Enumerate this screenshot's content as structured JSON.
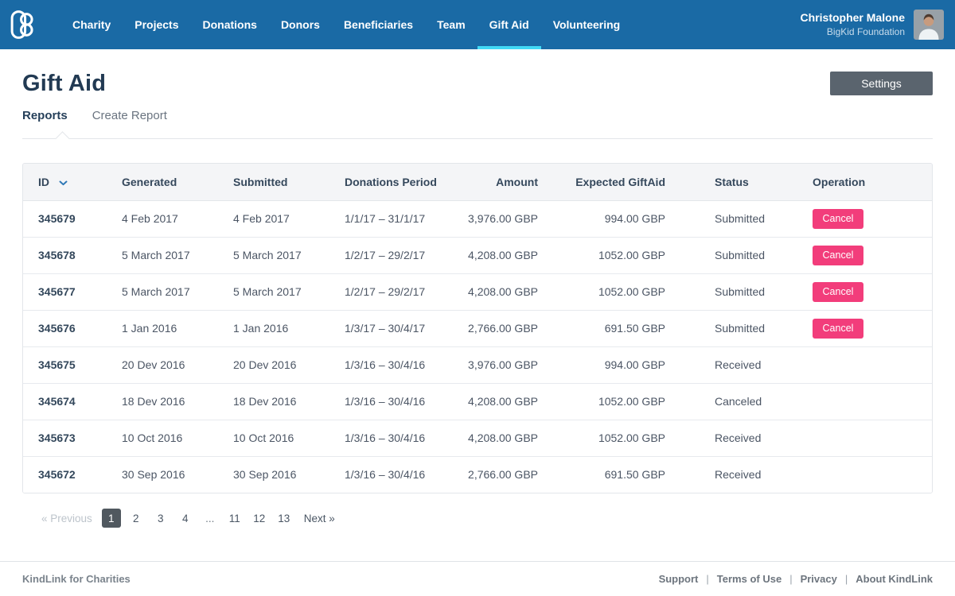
{
  "colors": {
    "nav_blue": "#1A6AA5",
    "active_cyan": "#41D9F5",
    "pink": "#F23D7B",
    "dark_navy": "#223A53",
    "settings_gray": "#5A646E"
  },
  "nav": {
    "logo": "kindlink-logo",
    "items": [
      {
        "label": "Charity",
        "active": false
      },
      {
        "label": "Projects",
        "active": false
      },
      {
        "label": "Donations",
        "active": false
      },
      {
        "label": "Donors",
        "active": false
      },
      {
        "label": "Beneficiaries",
        "active": false
      },
      {
        "label": "Team",
        "active": false
      },
      {
        "label": "Gift Aid",
        "active": true
      },
      {
        "label": "Volunteering",
        "active": false
      }
    ],
    "user": {
      "name": "Christopher Malone",
      "org": "BigKid Foundation"
    }
  },
  "page": {
    "title": "Gift Aid",
    "settings_label": "Settings",
    "tabs": [
      {
        "label": "Reports",
        "active": true
      },
      {
        "label": "Create Report",
        "active": false
      }
    ]
  },
  "table": {
    "columns": [
      "ID",
      "Generated",
      "Submitted",
      "Donations Period",
      "Amount",
      "Expected GiftAid",
      "Status",
      "Operation"
    ],
    "sorted_column": "ID",
    "rows": [
      {
        "id": "345679",
        "generated": "4 Feb 2017",
        "submitted": "4 Feb 2017",
        "period": "1/1/17 – 31/1/17",
        "amount": "3,976.00 GBP",
        "expected": "994.00 GBP",
        "status": "Submitted",
        "operation": "Cancel"
      },
      {
        "id": "345678",
        "generated": "5 March 2017",
        "submitted": "5 March 2017",
        "period": "1/2/17 – 29/2/17",
        "amount": "4,208.00 GBP",
        "expected": "1052.00 GBP",
        "status": "Submitted",
        "operation": "Cancel"
      },
      {
        "id": "345677",
        "generated": "5 March 2017",
        "submitted": "5 March 2017",
        "period": "1/2/17 – 29/2/17",
        "amount": "4,208.00 GBP",
        "expected": "1052.00 GBP",
        "status": "Submitted",
        "operation": "Cancel"
      },
      {
        "id": "345676",
        "generated": "1 Jan 2016",
        "submitted": "1 Jan 2016",
        "period": "1/3/17 – 30/4/17",
        "amount": "2,766.00 GBP",
        "expected": "691.50 GBP",
        "status": "Submitted",
        "operation": "Cancel"
      },
      {
        "id": "345675",
        "generated": "20 Dev 2016",
        "submitted": "20 Dev 2016",
        "period": "1/3/16 – 30/4/16",
        "amount": "3,976.00 GBP",
        "expected": "994.00 GBP",
        "status": "Received",
        "operation": null
      },
      {
        "id": "345674",
        "generated": "18 Dev 2016",
        "submitted": "18 Dev 2016",
        "period": "1/3/16 – 30/4/16",
        "amount": "4,208.00 GBP",
        "expected": "1052.00 GBP",
        "status": "Canceled",
        "operation": null
      },
      {
        "id": "345673",
        "generated": "10 Oct 2016",
        "submitted": "10 Oct 2016",
        "period": "1/3/16 – 30/4/16",
        "amount": "4,208.00 GBP",
        "expected": "1052.00 GBP",
        "status": "Received",
        "operation": null
      },
      {
        "id": "345672",
        "generated": "30 Sep 2016",
        "submitted": "30 Sep 2016",
        "period": "1/3/16 – 30/4/16",
        "amount": "2,766.00 GBP",
        "expected": "691.50 GBP",
        "status": "Received",
        "operation": null
      }
    ]
  },
  "pagination": {
    "previous": "« Previous",
    "next": "Next »",
    "pages": [
      {
        "label": "1",
        "active": true
      },
      {
        "label": "2",
        "active": false
      },
      {
        "label": "3",
        "active": false
      },
      {
        "label": "4",
        "active": false
      },
      {
        "label": "...",
        "active": false,
        "ellipsis": true
      },
      {
        "label": "11",
        "active": false
      },
      {
        "label": "12",
        "active": false
      },
      {
        "label": "13",
        "active": false
      }
    ]
  },
  "footer": {
    "brand": "KindLink for Charities",
    "links": [
      "Support",
      "Terms of Use",
      "Privacy",
      "About KindLink"
    ]
  }
}
